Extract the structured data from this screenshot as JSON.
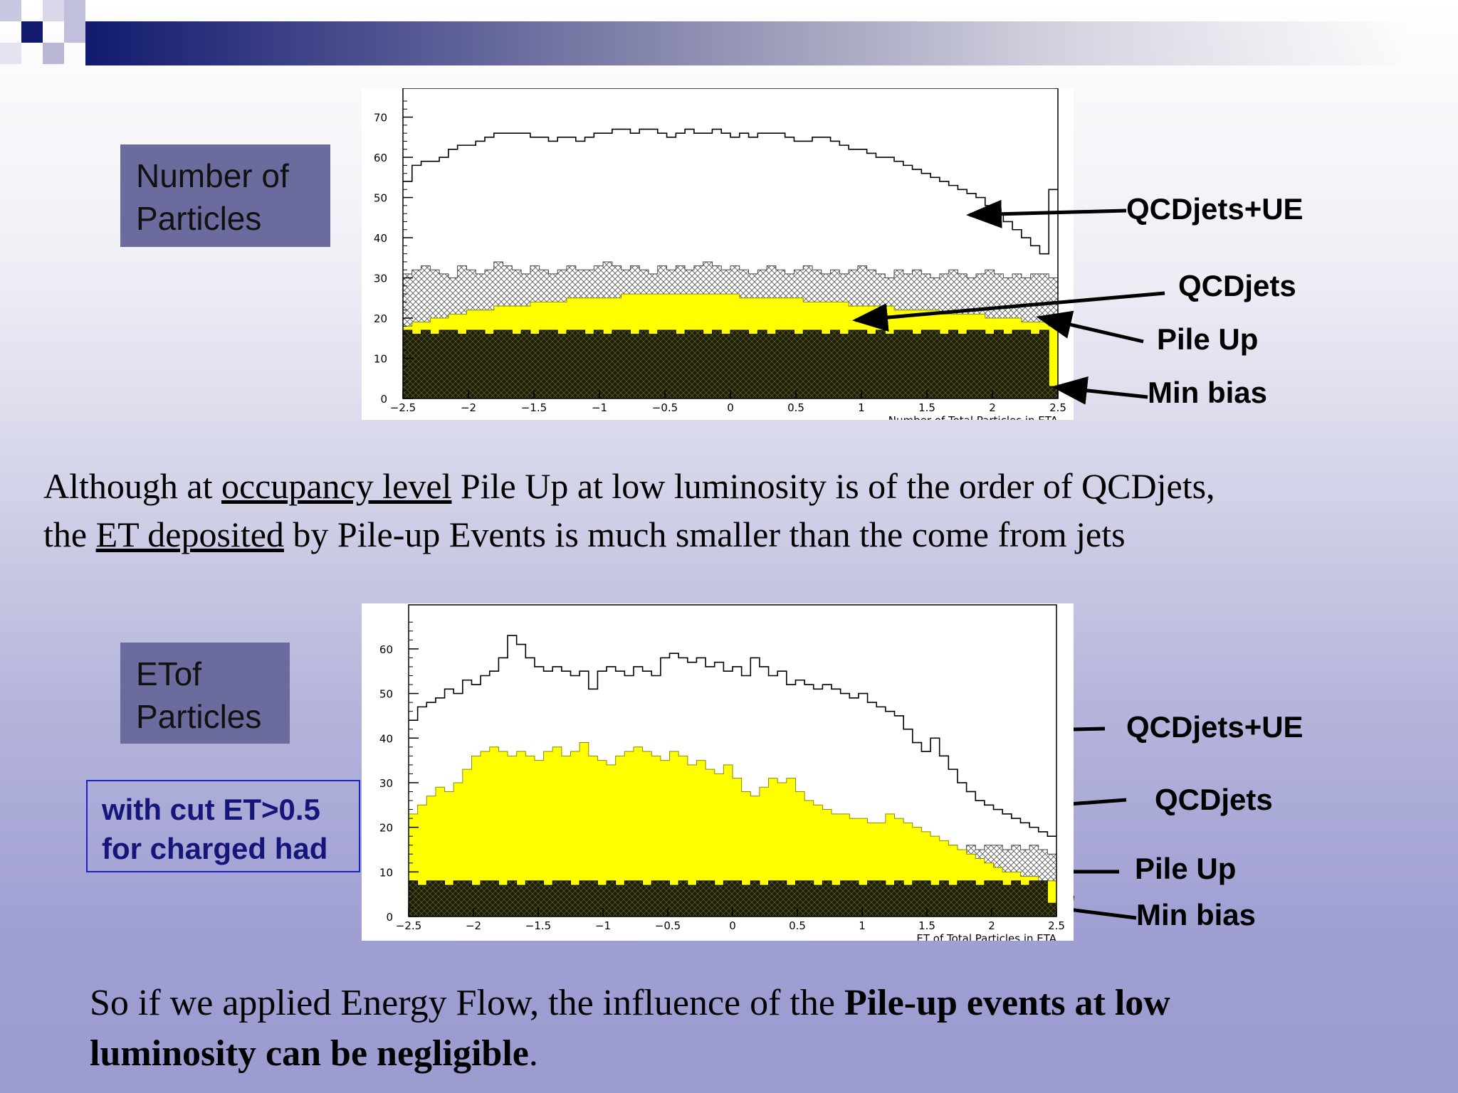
{
  "colors": {
    "title_bar": "#111a6e",
    "label_box": "#6b6b9e",
    "cut_box_border": "#1a23c8",
    "cut_box_text": "#15157a",
    "qcdjets": "#ffff00",
    "min_bias": "#1c1c10",
    "pileup_hatch": "#555555"
  },
  "top": {
    "label": [
      "Number of",
      "Particles"
    ],
    "annotations": {
      "qcdjets_ue": "QCDjets+UE",
      "qcdjets": "QCDjets",
      "pileup": "Pile Up",
      "minbias": "Min bias"
    }
  },
  "middle_text": {
    "line1": {
      "a": "Although at ",
      "u": "occupancy level",
      "b": "  Pile Up at low luminosity is of the order of QCDjets,"
    },
    "line2": {
      "a": "the ",
      "u": "ET deposited",
      "b": " by Pile-up Events is much smaller than the come from jets"
    }
  },
  "bottom": {
    "label": [
      "ETof",
      "Particles"
    ],
    "cut": [
      "with cut ET>0.5",
      "for charged had"
    ],
    "annotations": {
      "qcdjets_ue": "QCDjets+UE",
      "qcdjets": "QCDjets",
      "pileup": "Pile Up",
      "minbias": "Min bias"
    }
  },
  "conclusion": {
    "line1": "So if we applied Energy Flow, the influence of the ",
    "line1_bold": "Pile-up events at low",
    "line2_bold": "luminosity can be negligible",
    "line2_end": "."
  },
  "chart_data": [
    {
      "type": "area",
      "xlabel": "Number of Total Particles in ETA",
      "xlim": [
        -2.5,
        2.5
      ],
      "ylim": [
        0,
        74
      ],
      "xticks": [
        -2.5,
        -2,
        -1.5,
        -1,
        -0.5,
        0,
        0.5,
        1,
        1.5,
        2,
        2.5
      ],
      "yticks": [
        0,
        10,
        20,
        30,
        40,
        50,
        60,
        70
      ],
      "series": [
        {
          "name": "QCDjets+UE",
          "values": [
            54,
            58,
            59,
            59,
            60,
            62,
            63,
            63,
            64,
            65,
            66,
            66,
            66,
            66,
            65,
            65,
            64,
            65,
            65,
            64,
            65,
            66,
            66,
            67,
            67,
            66,
            67,
            67,
            66,
            65,
            66,
            67,
            66,
            66,
            67,
            66,
            65,
            66,
            65,
            66,
            66,
            66,
            65,
            64,
            64,
            65,
            65,
            64,
            63,
            62,
            62,
            61,
            60,
            60,
            59,
            58,
            57,
            56,
            55,
            54,
            53,
            52,
            51,
            50,
            48,
            46,
            44,
            42,
            40,
            38,
            36,
            52
          ]
        },
        {
          "name": "QCDjets",
          "values": [
            18,
            19,
            19,
            20,
            20,
            21,
            21,
            22,
            22,
            22,
            23,
            23,
            23,
            23,
            24,
            24,
            24,
            24,
            25,
            25,
            25,
            25,
            25,
            25,
            26,
            26,
            26,
            26,
            26,
            26,
            26,
            26,
            26,
            26,
            26,
            26,
            26,
            25,
            25,
            25,
            25,
            25,
            25,
            25,
            24,
            24,
            24,
            24,
            24,
            23,
            23,
            23,
            23,
            23,
            22,
            22,
            22,
            22,
            22,
            21,
            21,
            21,
            21,
            21,
            20,
            20,
            20,
            20,
            19,
            19,
            19,
            18
          ]
        },
        {
          "name": "Pile Up",
          "values": [
            31,
            32,
            33,
            32,
            31,
            30,
            33,
            32,
            31,
            32,
            34,
            33,
            32,
            31,
            33,
            32,
            31,
            32,
            33,
            32,
            32,
            33,
            34,
            33,
            32,
            33,
            32,
            31,
            33,
            32,
            33,
            32,
            33,
            34,
            33,
            32,
            33,
            32,
            31,
            32,
            33,
            32,
            31,
            32,
            33,
            32,
            31,
            32,
            31,
            32,
            33,
            32,
            31,
            30,
            32,
            31,
            32,
            31,
            30,
            31,
            32,
            31,
            30,
            31,
            32,
            31,
            30,
            31,
            30,
            31,
            31,
            30
          ]
        },
        {
          "name": "Min bias",
          "values": [
            17,
            16,
            17,
            16,
            17,
            17,
            16,
            17,
            17,
            16,
            17,
            17,
            16,
            17,
            16,
            17,
            17,
            16,
            17,
            17,
            16,
            17,
            16,
            17,
            17,
            16,
            17,
            16,
            17,
            17,
            16,
            17,
            17,
            16,
            17,
            16,
            17,
            17,
            16,
            17,
            16,
            17,
            17,
            16,
            17,
            17,
            16,
            17,
            16,
            17,
            17,
            16,
            17,
            16,
            17,
            17,
            16,
            17,
            17,
            16,
            17,
            16,
            17,
            17,
            16,
            17,
            16,
            17,
            17,
            16,
            17,
            3
          ]
        }
      ]
    },
    {
      "type": "area",
      "xlabel": "ET of Total Particles in ETA",
      "xlim": [
        -2.5,
        2.5
      ],
      "ylim": [
        0,
        67
      ],
      "xticks": [
        -2.5,
        -2,
        -1.5,
        -1,
        -0.5,
        0,
        0.5,
        1,
        1.5,
        2,
        2.5
      ],
      "yticks": [
        0,
        10,
        20,
        30,
        40,
        50,
        60
      ],
      "series": [
        {
          "name": "QCDjets+UE",
          "values": [
            44,
            47,
            48,
            49,
            51,
            50,
            53,
            52,
            54,
            55,
            58,
            63,
            61,
            58,
            56,
            55,
            56,
            55,
            54,
            55,
            51,
            55,
            56,
            55,
            54,
            56,
            55,
            54,
            58,
            59,
            58,
            57,
            58,
            56,
            57,
            55,
            56,
            54,
            58,
            56,
            54,
            55,
            52,
            53,
            52,
            51,
            52,
            51,
            50,
            49,
            50,
            48,
            47,
            46,
            45,
            42,
            39,
            37,
            40,
            36,
            33,
            30,
            28,
            26,
            25,
            24,
            23,
            22,
            21,
            20,
            19,
            18
          ]
        },
        {
          "name": "QCDjets",
          "values": [
            23,
            25,
            27,
            29,
            28,
            30,
            33,
            36,
            37,
            38,
            37,
            36,
            37,
            36,
            35,
            37,
            38,
            36,
            37,
            39,
            36,
            35,
            34,
            36,
            37,
            38,
            37,
            36,
            35,
            37,
            36,
            34,
            35,
            33,
            32,
            34,
            31,
            28,
            27,
            29,
            31,
            30,
            31,
            28,
            26,
            25,
            24,
            23,
            23,
            22,
            22,
            21,
            21,
            23,
            22,
            21,
            20,
            19,
            18,
            17,
            16,
            15,
            14,
            13,
            12,
            11,
            10,
            10,
            9,
            9,
            8,
            8
          ]
        },
        {
          "name": "Pile Up",
          "values": [
            15,
            16,
            15,
            16,
            16,
            15,
            16,
            15,
            16,
            16,
            15,
            16,
            15,
            16,
            16,
            15,
            16,
            15,
            16,
            15,
            16,
            16,
            15,
            16,
            15,
            16,
            16,
            15,
            16,
            15,
            16,
            16,
            15,
            16,
            15,
            16,
            16,
            15,
            16,
            15,
            16,
            15,
            16,
            16,
            15,
            16,
            15,
            16,
            16,
            15,
            16,
            15,
            16,
            16,
            15,
            16,
            15,
            16,
            15,
            16,
            16,
            15,
            16,
            15,
            16,
            16,
            15,
            16,
            15,
            16,
            15,
            14
          ]
        },
        {
          "name": "Min bias",
          "values": [
            8,
            7,
            8,
            8,
            7,
            8,
            8,
            7,
            8,
            8,
            7,
            8,
            7,
            8,
            8,
            7,
            8,
            8,
            7,
            8,
            8,
            7,
            8,
            7,
            8,
            8,
            7,
            8,
            8,
            7,
            8,
            7,
            8,
            8,
            7,
            8,
            8,
            7,
            8,
            7,
            8,
            8,
            7,
            8,
            8,
            7,
            8,
            7,
            8,
            8,
            7,
            8,
            8,
            7,
            8,
            7,
            8,
            8,
            7,
            8,
            7,
            8,
            8,
            7,
            8,
            8,
            7,
            8,
            7,
            8,
            8,
            3
          ]
        }
      ]
    }
  ]
}
